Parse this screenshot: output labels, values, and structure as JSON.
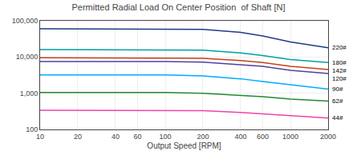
{
  "chart_data": {
    "type": "line",
    "title": "Permitted Radial Load On Center Position  of Shaft [N]",
    "xlabel": "Output Speed [RPM]",
    "x": [
      10,
      20,
      40,
      60,
      100,
      200,
      400,
      600,
      1000,
      2000
    ],
    "series": [
      {
        "name": "220#",
        "color": "#1e3a8a",
        "values": [
          60000,
          60000,
          60000,
          60000,
          60000,
          58000,
          48000,
          38000,
          26000,
          18000
        ]
      },
      {
        "name": "180#",
        "color": "#00a0a0",
        "values": [
          16000,
          16000,
          16000,
          16000,
          16000,
          15500,
          13000,
          11000,
          8500,
          7000
        ]
      },
      {
        "name": "142#",
        "color": "#c84010",
        "values": [
          9500,
          9500,
          9500,
          9500,
          9500,
          9200,
          8000,
          7000,
          5500,
          4500
        ]
      },
      {
        "name": "120#",
        "color": "#5040a0",
        "values": [
          7500,
          7500,
          7500,
          7500,
          7500,
          7200,
          6200,
          5500,
          4300,
          3500
        ]
      },
      {
        "name": "90#",
        "color": "#00aaff",
        "values": [
          3200,
          3200,
          3200,
          3200,
          3200,
          3000,
          2500,
          2100,
          1700,
          1300
        ]
      },
      {
        "name": "62#",
        "color": "#228833",
        "values": [
          1050,
          1050,
          1050,
          1050,
          1050,
          1000,
          880,
          800,
          690,
          610
        ]
      },
      {
        "name": "44#",
        "color": "#ee44aa",
        "values": [
          340,
          340,
          340,
          340,
          340,
          330,
          295,
          270,
          235,
          205
        ]
      }
    ],
    "xlim": [
      10,
      2000
    ],
    "ylim": [
      100,
      100000
    ],
    "xticks": [
      10,
      20,
      40,
      60,
      100,
      200,
      400,
      600,
      1000,
      2000
    ],
    "yticks": [
      100,
      {
        "value": 1000,
        "label": "1,000"
      },
      {
        "value": 10000,
        "label": "10,000"
      },
      {
        "value": 100000,
        "label": "100,000"
      }
    ],
    "log": true,
    "grid": true
  }
}
